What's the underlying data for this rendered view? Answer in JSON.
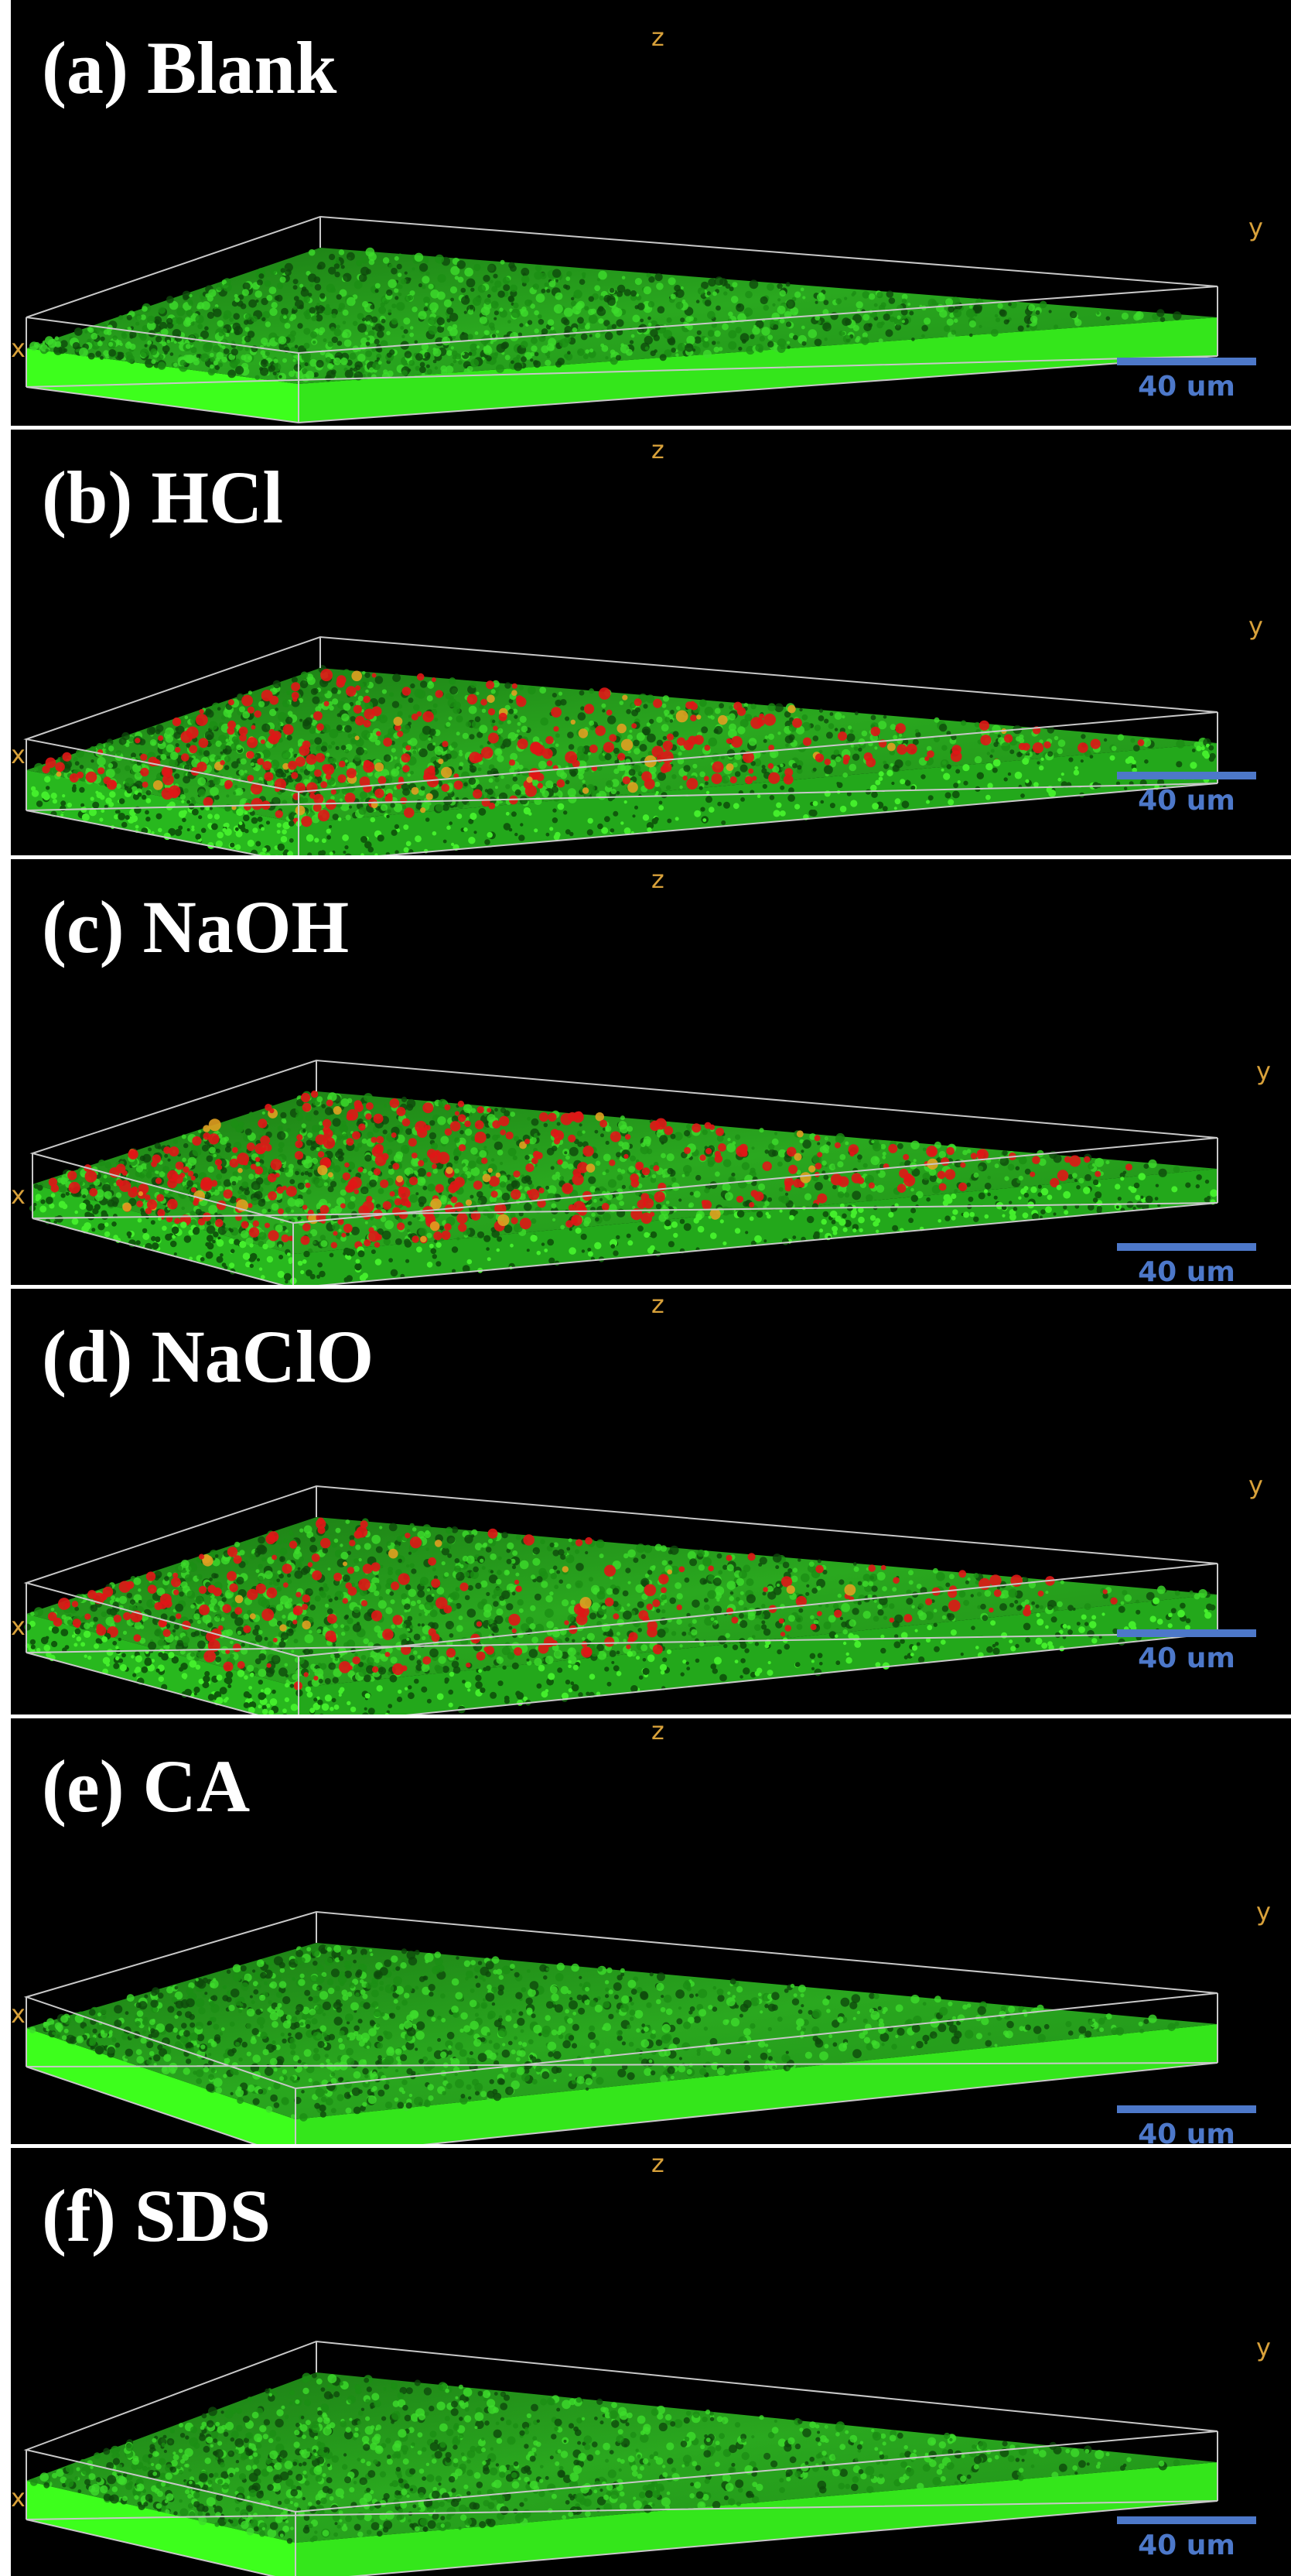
{
  "colors": {
    "background": "#000000",
    "box_edge": "#c8c8c8",
    "axis_label": "#d8a13a",
    "scale_bar": "#4d78c9",
    "live_green": "#22d61e",
    "slab_green": "#3dff1c",
    "dead_red": "#e01616",
    "title_text": "#ffffff"
  },
  "panels": [
    {
      "title": "(a) Blank",
      "dead_level": 0.0,
      "slab": "bright",
      "scale_label": "40 um",
      "axis_x": "x",
      "axis_y": "y",
      "axis_z": "z"
    },
    {
      "title": "(b) HCl",
      "dead_level": 0.35,
      "slab": "speckled",
      "scale_label": "40 um",
      "axis_x": "x",
      "axis_y": "y",
      "axis_z": "z"
    },
    {
      "title": "(c) NaOH",
      "dead_level": 0.45,
      "slab": "speckled",
      "scale_label": "40 um",
      "axis_x": "x",
      "axis_y": "y",
      "axis_z": "z"
    },
    {
      "title": "(d) NaClO",
      "dead_level": 0.25,
      "slab": "speckled",
      "scale_label": "40 um",
      "axis_x": "x",
      "axis_y": "y",
      "axis_z": "z"
    },
    {
      "title": "(e) CA",
      "dead_level": 0.0,
      "slab": "bright",
      "scale_label": "40 um",
      "axis_x": "x",
      "axis_y": "y",
      "axis_z": "z"
    },
    {
      "title": "(f) SDS",
      "dead_level": 0.0,
      "slab": "bright",
      "scale_label": "40 um",
      "axis_x": "x",
      "axis_y": "y",
      "axis_z": "z"
    }
  ]
}
